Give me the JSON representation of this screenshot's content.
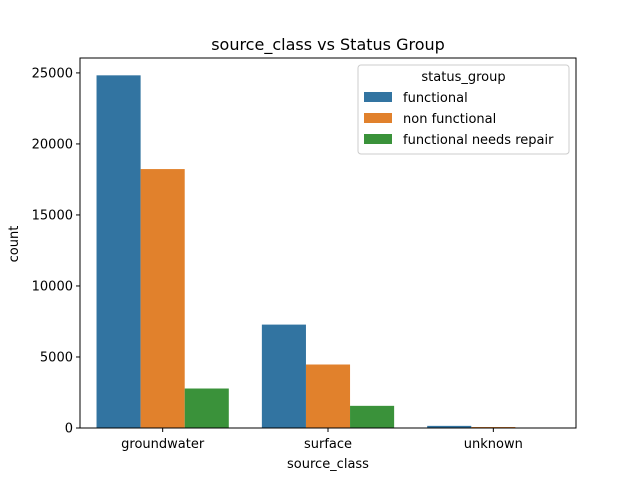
{
  "chart_data": {
    "type": "bar",
    "title": "source_class vs Status Group",
    "xlabel": "source_class",
    "ylabel": "count",
    "categories": [
      "groundwater",
      "surface",
      "unknown"
    ],
    "series": [
      {
        "name": "functional",
        "color": "#3274a1",
        "values": [
          24830,
          7280,
          150
        ]
      },
      {
        "name": "non functional",
        "color": "#e1812c",
        "values": [
          18230,
          4470,
          70
        ]
      },
      {
        "name": "functional needs repair",
        "color": "#3a923a",
        "values": [
          2780,
          1560,
          20
        ]
      }
    ],
    "yticks": [
      0,
      5000,
      10000,
      15000,
      20000,
      25000
    ],
    "ylim": [
      0,
      26050
    ],
    "grid": false,
    "legend": {
      "title": "status_group",
      "placement": "top-right"
    }
  }
}
